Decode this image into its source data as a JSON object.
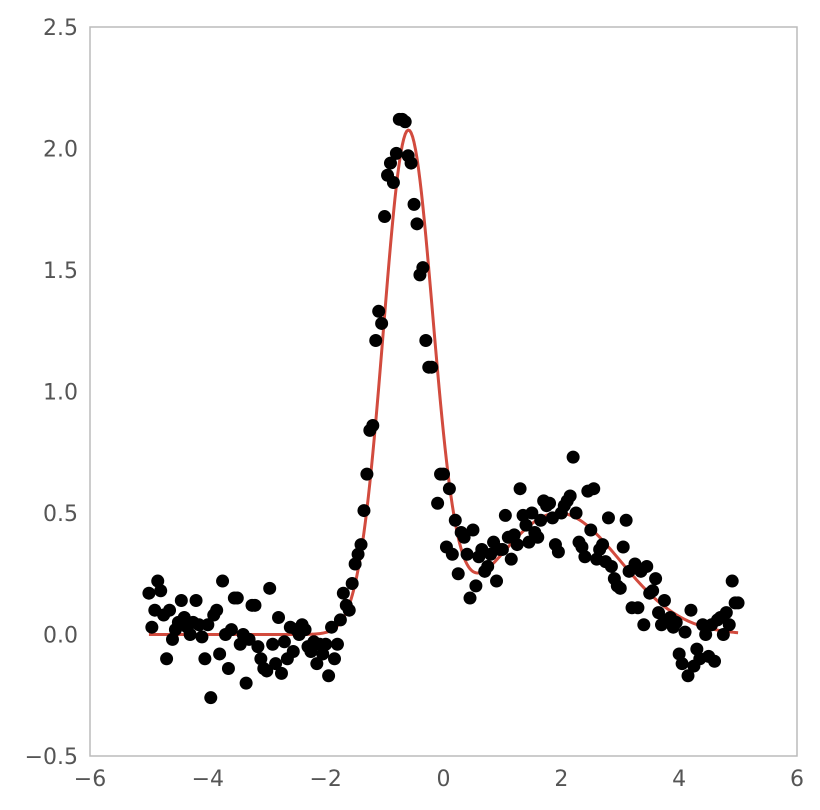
{
  "chart_data": {
    "type": "scatter",
    "title": "",
    "xlabel": "",
    "ylabel": "",
    "xlim": [
      -6,
      6
    ],
    "ylim": [
      -0.5,
      2.5
    ],
    "grid": false,
    "x_ticks": [
      -6,
      -4,
      -2,
      0,
      2,
      4,
      6
    ],
    "x_tick_labels": [
      "−6",
      "−4",
      "−2",
      "0",
      "2",
      "4",
      "6"
    ],
    "y_ticks": [
      -0.5,
      0.0,
      0.5,
      1.0,
      1.5,
      2.0,
      2.5
    ],
    "y_tick_labels": [
      "−0.5",
      "0.0",
      "0.5",
      "1.0",
      "1.5",
      "2.0",
      "2.5"
    ],
    "colors": {
      "points": "#000000",
      "curve": "#d24b3e",
      "frame": "#bbbbbb",
      "ticks": "#555555"
    },
    "series": [
      {
        "kind": "scatter",
        "points": [
          [
            -5.0,
            0.17
          ],
          [
            -4.95,
            0.03
          ],
          [
            -4.9,
            0.1
          ],
          [
            -4.85,
            0.22
          ],
          [
            -4.8,
            0.18
          ],
          [
            -4.75,
            0.08
          ],
          [
            -4.7,
            -0.1
          ],
          [
            -4.65,
            0.1
          ],
          [
            -4.6,
            -0.02
          ],
          [
            -4.55,
            0.02
          ],
          [
            -4.5,
            0.05
          ],
          [
            -4.45,
            0.14
          ],
          [
            -4.4,
            0.07
          ],
          [
            -4.35,
            0.03
          ],
          [
            -4.3,
            0.0
          ],
          [
            -4.25,
            0.05
          ],
          [
            -4.2,
            0.14
          ],
          [
            -4.15,
            0.04
          ],
          [
            -4.1,
            -0.01
          ],
          [
            -4.05,
            -0.1
          ],
          [
            -4.0,
            0.04
          ],
          [
            -3.95,
            -0.26
          ],
          [
            -3.9,
            0.08
          ],
          [
            -3.85,
            0.1
          ],
          [
            -3.8,
            -0.08
          ],
          [
            -3.75,
            0.22
          ],
          [
            -3.7,
            0.0
          ],
          [
            -3.65,
            -0.14
          ],
          [
            -3.6,
            0.02
          ],
          [
            -3.55,
            0.15
          ],
          [
            -3.5,
            0.15
          ],
          [
            -3.45,
            -0.04
          ],
          [
            -3.4,
            0.0
          ],
          [
            -3.35,
            -0.2
          ],
          [
            -3.3,
            -0.02
          ],
          [
            -3.25,
            0.12
          ],
          [
            -3.2,
            0.12
          ],
          [
            -3.15,
            -0.05
          ],
          [
            -3.1,
            -0.1
          ],
          [
            -3.05,
            -0.14
          ],
          [
            -3.0,
            -0.15
          ],
          [
            -2.95,
            0.19
          ],
          [
            -2.9,
            -0.04
          ],
          [
            -2.85,
            -0.12
          ],
          [
            -2.8,
            0.07
          ],
          [
            -2.75,
            -0.16
          ],
          [
            -2.7,
            -0.03
          ],
          [
            -2.65,
            -0.1
          ],
          [
            -2.6,
            0.03
          ],
          [
            -2.55,
            -0.07
          ],
          [
            -2.5,
            0.02
          ],
          [
            -2.45,
            0.0
          ],
          [
            -2.4,
            0.04
          ],
          [
            -2.35,
            0.02
          ],
          [
            -2.3,
            -0.05
          ],
          [
            -2.25,
            -0.07
          ],
          [
            -2.2,
            -0.03
          ],
          [
            -2.15,
            -0.12
          ],
          [
            -2.1,
            -0.04
          ],
          [
            -2.05,
            -0.08
          ],
          [
            -2.0,
            -0.04
          ],
          [
            -1.95,
            -0.17
          ],
          [
            -1.9,
            0.03
          ],
          [
            -1.85,
            -0.1
          ],
          [
            -1.8,
            -0.04
          ],
          [
            -1.75,
            0.06
          ],
          [
            -1.7,
            0.17
          ],
          [
            -1.65,
            0.12
          ],
          [
            -1.6,
            0.1
          ],
          [
            -1.55,
            0.21
          ],
          [
            -1.5,
            0.29
          ],
          [
            -1.45,
            0.33
          ],
          [
            -1.4,
            0.37
          ],
          [
            -1.35,
            0.51
          ],
          [
            -1.3,
            0.66
          ],
          [
            -1.25,
            0.84
          ],
          [
            -1.2,
            0.86
          ],
          [
            -1.15,
            1.21
          ],
          [
            -1.1,
            1.33
          ],
          [
            -1.05,
            1.28
          ],
          [
            -1.0,
            1.72
          ],
          [
            -0.95,
            1.89
          ],
          [
            -0.9,
            1.94
          ],
          [
            -0.85,
            1.86
          ],
          [
            -0.8,
            1.98
          ],
          [
            -0.75,
            2.12
          ],
          [
            -0.7,
            2.12
          ],
          [
            -0.65,
            2.11
          ],
          [
            -0.6,
            1.97
          ],
          [
            -0.55,
            1.94
          ],
          [
            -0.5,
            1.77
          ],
          [
            -0.45,
            1.69
          ],
          [
            -0.4,
            1.48
          ],
          [
            -0.35,
            1.51
          ],
          [
            -0.3,
            1.21
          ],
          [
            -0.25,
            1.1
          ],
          [
            -0.2,
            1.1
          ],
          [
            -0.1,
            0.54
          ],
          [
            -0.05,
            0.66
          ],
          [
            0.0,
            0.66
          ],
          [
            0.05,
            0.36
          ],
          [
            0.1,
            0.6
          ],
          [
            0.15,
            0.33
          ],
          [
            0.2,
            0.47
          ],
          [
            0.25,
            0.25
          ],
          [
            0.3,
            0.42
          ],
          [
            0.35,
            0.4
          ],
          [
            0.4,
            0.33
          ],
          [
            0.45,
            0.15
          ],
          [
            0.5,
            0.43
          ],
          [
            0.55,
            0.2
          ],
          [
            0.6,
            0.32
          ],
          [
            0.65,
            0.35
          ],
          [
            0.7,
            0.26
          ],
          [
            0.75,
            0.28
          ],
          [
            0.8,
            0.33
          ],
          [
            0.85,
            0.38
          ],
          [
            0.9,
            0.22
          ],
          [
            0.95,
            0.35
          ],
          [
            1.0,
            0.35
          ],
          [
            1.05,
            0.49
          ],
          [
            1.1,
            0.4
          ],
          [
            1.15,
            0.31
          ],
          [
            1.2,
            0.41
          ],
          [
            1.25,
            0.37
          ],
          [
            1.3,
            0.6
          ],
          [
            1.35,
            0.49
          ],
          [
            1.4,
            0.45
          ],
          [
            1.45,
            0.38
          ],
          [
            1.5,
            0.5
          ],
          [
            1.55,
            0.42
          ],
          [
            1.6,
            0.4
          ],
          [
            1.65,
            0.47
          ],
          [
            1.7,
            0.55
          ],
          [
            1.75,
            0.53
          ],
          [
            1.8,
            0.54
          ],
          [
            1.85,
            0.48
          ],
          [
            1.9,
            0.37
          ],
          [
            1.95,
            0.34
          ],
          [
            2.0,
            0.5
          ],
          [
            2.05,
            0.53
          ],
          [
            2.1,
            0.55
          ],
          [
            2.15,
            0.57
          ],
          [
            2.2,
            0.73
          ],
          [
            2.25,
            0.5
          ],
          [
            2.3,
            0.38
          ],
          [
            2.35,
            0.36
          ],
          [
            2.4,
            0.32
          ],
          [
            2.45,
            0.59
          ],
          [
            2.5,
            0.43
          ],
          [
            2.55,
            0.6
          ],
          [
            2.6,
            0.31
          ],
          [
            2.65,
            0.35
          ],
          [
            2.7,
            0.37
          ],
          [
            2.75,
            0.3
          ],
          [
            2.8,
            0.48
          ],
          [
            2.85,
            0.28
          ],
          [
            2.9,
            0.23
          ],
          [
            2.95,
            0.2
          ],
          [
            3.0,
            0.19
          ],
          [
            3.05,
            0.36
          ],
          [
            3.1,
            0.47
          ],
          [
            3.15,
            0.26
          ],
          [
            3.2,
            0.11
          ],
          [
            3.25,
            0.29
          ],
          [
            3.3,
            0.11
          ],
          [
            3.35,
            0.26
          ],
          [
            3.4,
            0.04
          ],
          [
            3.45,
            0.28
          ],
          [
            3.5,
            0.17
          ],
          [
            3.55,
            0.18
          ],
          [
            3.6,
            0.23
          ],
          [
            3.65,
            0.09
          ],
          [
            3.7,
            0.04
          ],
          [
            3.75,
            0.14
          ],
          [
            3.8,
            0.06
          ],
          [
            3.85,
            0.07
          ],
          [
            3.9,
            0.03
          ],
          [
            3.95,
            0.05
          ],
          [
            4.0,
            -0.08
          ],
          [
            4.05,
            -0.12
          ],
          [
            4.1,
            0.01
          ],
          [
            4.15,
            -0.17
          ],
          [
            4.2,
            0.1
          ],
          [
            4.25,
            -0.13
          ],
          [
            4.3,
            -0.06
          ],
          [
            4.35,
            -0.1
          ],
          [
            4.4,
            0.04
          ],
          [
            4.45,
            0.0
          ],
          [
            4.5,
            -0.09
          ],
          [
            4.55,
            0.04
          ],
          [
            4.6,
            -0.11
          ],
          [
            4.65,
            0.06
          ],
          [
            4.7,
            0.07
          ],
          [
            4.75,
            0.0
          ],
          [
            4.8,
            0.09
          ],
          [
            4.85,
            0.04
          ],
          [
            4.9,
            0.22
          ],
          [
            4.95,
            0.13
          ],
          [
            5.0,
            0.13
          ]
        ]
      },
      {
        "kind": "line",
        "model": "sum of two gaussians",
        "components": [
          {
            "amplitude": 2.05,
            "center": -0.6,
            "sigma": 0.42
          },
          {
            "amplitude": 0.5,
            "center": 1.95,
            "sigma": 1.05
          }
        ],
        "x_range": [
          -5,
          5
        ]
      }
    ]
  }
}
